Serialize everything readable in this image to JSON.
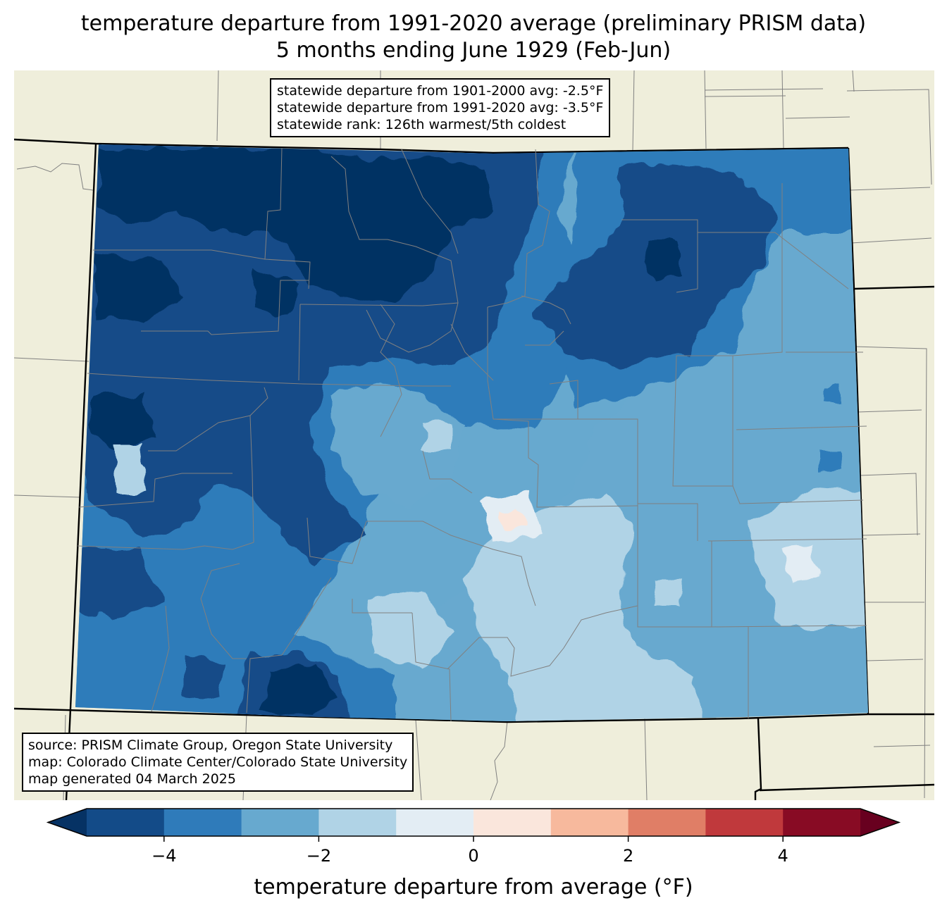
{
  "title": {
    "line1": "temperature departure from 1991-2020 average (preliminary PRISM data)",
    "line2": "5 months ending June 1929 (Feb-Jun)"
  },
  "stats_box": {
    "line1": "statewide departure from 1901-2000 avg: -2.5°F",
    "line2": "statewide departure from 1991-2020 avg: -3.5°F",
    "line3": "statewide rank: 126th warmest/5th coldest"
  },
  "source_box": {
    "line1": "source: PRISM Climate Group, Oregon State University",
    "line2": "map: Colorado Climate Center/Colorado State University",
    "line3": "map generated 04 March 2025"
  },
  "colorbar": {
    "label": "temperature departure from average (°F)",
    "range": [
      -5,
      5
    ],
    "levels": [
      -5,
      -4,
      -3,
      -2,
      -1,
      0,
      1,
      2,
      3,
      4,
      5
    ],
    "colors": [
      "#134b88",
      "#2f7bba",
      "#67a9cf",
      "#b0d3e6",
      "#e3edf4",
      "#fae6dc",
      "#f7b99d",
      "#e07e66",
      "#c0393c",
      "#880b24"
    ],
    "under_color": "#063264",
    "over_color": "#68001f",
    "ticks": [
      {
        "value": -4,
        "label": "−4"
      },
      {
        "value": -2,
        "label": "−2"
      },
      {
        "value": 0,
        "label": "0"
      },
      {
        "value": 2,
        "label": "2"
      },
      {
        "value": 4,
        "label": "4"
      }
    ]
  },
  "map_colors": {
    "land": "#efeedb",
    "county_lines": "#808080",
    "state_lines": "#000000"
  }
}
